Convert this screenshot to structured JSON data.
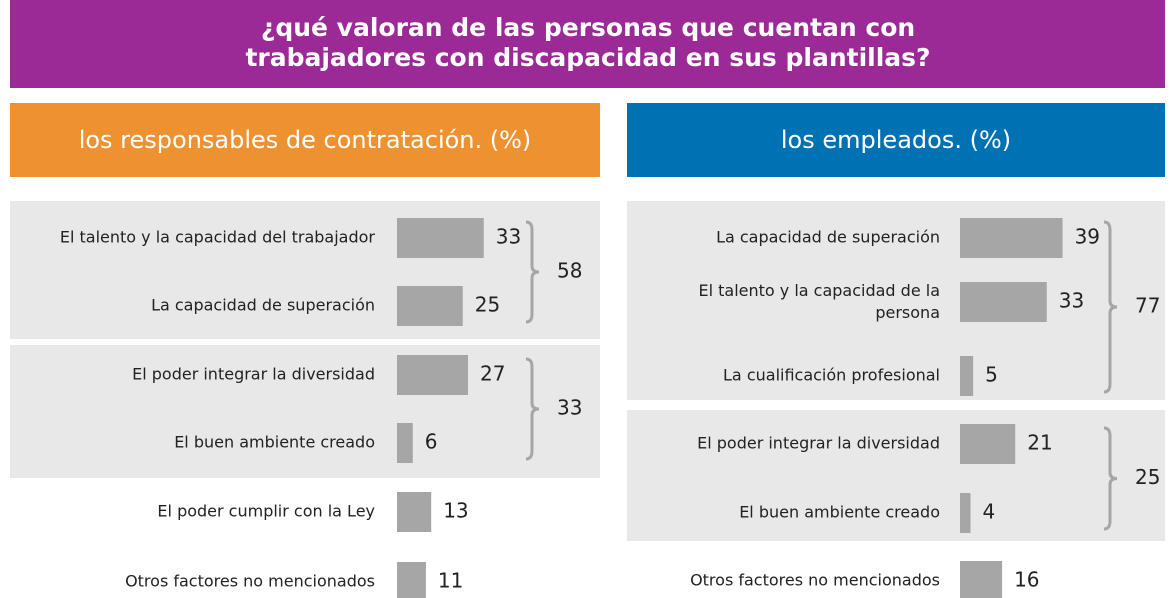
{
  "title": "¿qué valoran de las personas que cuentan con\ntrabajadores con discapacidad en sus plantillas?",
  "chart_data": [
    {
      "type": "bar",
      "title": "los responsables de contratación. (%)",
      "header_color": "#ee9231",
      "color": "#a6a6a6",
      "groups": [
        {
          "categories": [
            "El talento y la capacidad del trabajador",
            "La capacidad de superación"
          ],
          "values": [
            33,
            25
          ],
          "total": 58
        },
        {
          "categories": [
            "El poder integrar la diversidad",
            "El buen ambiente creado"
          ],
          "values": [
            27,
            6
          ],
          "total": 33
        },
        {
          "categories": [
            "El poder cumplir con la Ley"
          ],
          "values": [
            13
          ]
        },
        {
          "categories": [
            "Otros factores no mencionados"
          ],
          "values": [
            11
          ]
        }
      ]
    },
    {
      "type": "bar",
      "title": "los empleados. (%)",
      "header_color": "#0071b3",
      "color": "#a6a6a6",
      "groups": [
        {
          "categories": [
            "La capacidad de superación",
            "El talento y la capacidad de la\npersona",
            "La cualificación profesional"
          ],
          "values": [
            39,
            33,
            5
          ],
          "total": 77
        },
        {
          "categories": [
            "El poder integrar la diversidad",
            "El buen ambiente creado"
          ],
          "values": [
            21,
            4
          ],
          "total": 25
        },
        {
          "categories": [
            "Otros factores no mencionados"
          ],
          "values": [
            16
          ]
        }
      ]
    }
  ]
}
